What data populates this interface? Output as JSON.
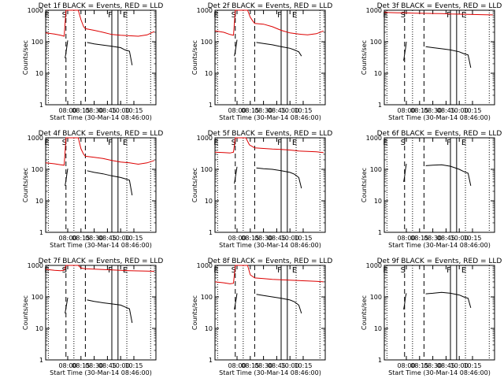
{
  "window": {
    "background": "#ffffff"
  },
  "chart_data": {
    "type": "line",
    "scale": "log",
    "ylim": [
      1,
      1000
    ],
    "yticks": [
      1,
      10,
      100,
      1000
    ],
    "ytick_labels": [
      "1",
      "10",
      "100",
      "1000"
    ],
    "ylabel": "Counts/sec",
    "xlabel": "Start Time (30-Mar-14 08:46:00)",
    "xlim_minutes": [
      -25,
      100
    ],
    "xtick_minutes": [
      0,
      15,
      30,
      45,
      60,
      75
    ],
    "xtick_labels": [
      "08:00",
      "08:15",
      "08:30",
      "08:45",
      "10:00",
      "10:15"
    ],
    "colors": {
      "events": "#000000",
      "lld": "#dd0000"
    },
    "markers": [
      {
        "label": "E",
        "minute": -22,
        "style": "dotted"
      },
      {
        "label": "S",
        "minute": -2,
        "style": "dashed"
      },
      {
        "label": "",
        "minute": 7,
        "style": "dotted"
      },
      {
        "label": "",
        "minute": 20,
        "style": "dashed"
      },
      {
        "label": "F",
        "minute": 50,
        "style": "solid"
      },
      {
        "label": "",
        "minute": 57,
        "style": "solid"
      },
      {
        "label": "E",
        "minute": 67,
        "style": "dotted"
      },
      {
        "label": "",
        "minute": 94,
        "style": "dotted"
      }
    ],
    "panels": [
      {
        "title": "Det 1f BLACK = Events, RED = LLD",
        "events": [
          [
            -3,
            30
          ],
          [
            -2,
            45
          ],
          [
            -1,
            70
          ],
          [
            0,
            110
          ],
          [
            22,
            95
          ],
          [
            30,
            85
          ],
          [
            40,
            78
          ],
          [
            50,
            72
          ],
          [
            60,
            65
          ],
          [
            65,
            55
          ],
          [
            70,
            50
          ],
          [
            73,
            18
          ]
        ],
        "lld": [
          [
            -25,
            190
          ],
          [
            -15,
            175
          ],
          [
            -8,
            160
          ],
          [
            -4,
            150
          ],
          [
            -2,
            1000
          ],
          [
            12,
            1000
          ],
          [
            15,
            500
          ],
          [
            18,
            300
          ],
          [
            20,
            260
          ],
          [
            30,
            230
          ],
          [
            40,
            200
          ],
          [
            50,
            170
          ],
          [
            60,
            160
          ],
          [
            70,
            155
          ],
          [
            80,
            150
          ],
          [
            90,
            165
          ],
          [
            98,
            210
          ]
        ]
      },
      {
        "title": "Det 2f BLACK = Events, RED = LLD",
        "events": [
          [
            -3,
            35
          ],
          [
            -2,
            50
          ],
          [
            -1,
            75
          ],
          [
            0,
            115
          ],
          [
            22,
            95
          ],
          [
            30,
            88
          ],
          [
            40,
            80
          ],
          [
            50,
            70
          ],
          [
            60,
            62
          ],
          [
            65,
            55
          ],
          [
            70,
            48
          ],
          [
            73,
            35
          ]
        ],
        "lld": [
          [
            -25,
            220
          ],
          [
            -15,
            200
          ],
          [
            -8,
            170
          ],
          [
            -4,
            160
          ],
          [
            -2,
            1000
          ],
          [
            12,
            1000
          ],
          [
            15,
            600
          ],
          [
            18,
            450
          ],
          [
            20,
            380
          ],
          [
            30,
            360
          ],
          [
            40,
            300
          ],
          [
            50,
            230
          ],
          [
            60,
            190
          ],
          [
            70,
            175
          ],
          [
            80,
            165
          ],
          [
            90,
            180
          ],
          [
            98,
            220
          ]
        ]
      },
      {
        "title": "Det 3f BLACK = Events, RED = LLD",
        "events": [
          [
            -3,
            25
          ],
          [
            -2,
            40
          ],
          [
            -1,
            60
          ],
          [
            0,
            100
          ],
          [
            22,
            70
          ],
          [
            30,
            65
          ],
          [
            40,
            60
          ],
          [
            50,
            55
          ],
          [
            60,
            48
          ],
          [
            65,
            42
          ],
          [
            70,
            38
          ],
          [
            73,
            15
          ]
        ],
        "lld": [
          [
            -25,
            850
          ],
          [
            -10,
            830
          ],
          [
            0,
            820
          ],
          [
            10,
            810
          ],
          [
            20,
            800
          ],
          [
            30,
            790
          ],
          [
            40,
            780
          ],
          [
            50,
            760
          ],
          [
            60,
            750
          ],
          [
            70,
            740
          ],
          [
            80,
            730
          ],
          [
            90,
            720
          ],
          [
            98,
            710
          ]
        ]
      },
      {
        "title": "Det 4f BLACK = Events, RED = LLD",
        "events": [
          [
            -3,
            30
          ],
          [
            -2,
            45
          ],
          [
            -1,
            70
          ],
          [
            0,
            105
          ],
          [
            22,
            90
          ],
          [
            30,
            80
          ],
          [
            40,
            72
          ],
          [
            50,
            62
          ],
          [
            60,
            55
          ],
          [
            65,
            50
          ],
          [
            70,
            45
          ],
          [
            73,
            15
          ]
        ],
        "lld": [
          [
            -25,
            160
          ],
          [
            -15,
            150
          ],
          [
            -8,
            140
          ],
          [
            -4,
            135
          ],
          [
            -2,
            1000
          ],
          [
            12,
            1000
          ],
          [
            15,
            450
          ],
          [
            18,
            300
          ],
          [
            20,
            260
          ],
          [
            30,
            240
          ],
          [
            40,
            220
          ],
          [
            50,
            190
          ],
          [
            60,
            170
          ],
          [
            70,
            160
          ],
          [
            80,
            145
          ],
          [
            90,
            160
          ],
          [
            98,
            190
          ]
        ]
      },
      {
        "title": "Det 5f BLACK = Events, RED = LLD",
        "events": [
          [
            -3,
            35
          ],
          [
            -2,
            55
          ],
          [
            -1,
            80
          ],
          [
            0,
            120
          ],
          [
            22,
            110
          ],
          [
            30,
            105
          ],
          [
            40,
            100
          ],
          [
            50,
            90
          ],
          [
            60,
            80
          ],
          [
            65,
            70
          ],
          [
            70,
            55
          ],
          [
            73,
            25
          ]
        ],
        "lld": [
          [
            -25,
            350
          ],
          [
            -15,
            340
          ],
          [
            -8,
            330
          ],
          [
            -4,
            350
          ],
          [
            -2,
            1000
          ],
          [
            10,
            1000
          ],
          [
            14,
            600
          ],
          [
            20,
            480
          ],
          [
            30,
            460
          ],
          [
            40,
            440
          ],
          [
            50,
            430
          ],
          [
            60,
            410
          ],
          [
            70,
            380
          ],
          [
            80,
            370
          ],
          [
            90,
            360
          ],
          [
            98,
            340
          ]
        ]
      },
      {
        "title": "Det 6f BLACK = Events, RED = LLD",
        "events": [
          [
            -3,
            40
          ],
          [
            -2,
            60
          ],
          [
            -1,
            100
          ],
          [
            0,
            150
          ],
          [
            22,
            130
          ],
          [
            30,
            135
          ],
          [
            40,
            140
          ],
          [
            50,
            125
          ],
          [
            60,
            100
          ],
          [
            65,
            85
          ],
          [
            70,
            75
          ],
          [
            73,
            30
          ]
        ],
        "lld": []
      },
      {
        "title": "Det 7f BLACK = Events, RED = LLD",
        "events": [
          [
            -3,
            30
          ],
          [
            -2,
            45
          ],
          [
            -1,
            65
          ],
          [
            0,
            95
          ],
          [
            22,
            80
          ],
          [
            30,
            72
          ],
          [
            40,
            65
          ],
          [
            50,
            60
          ],
          [
            60,
            55
          ],
          [
            65,
            48
          ],
          [
            70,
            42
          ],
          [
            73,
            15
          ]
        ],
        "lld": [
          [
            -25,
            750
          ],
          [
            -15,
            700
          ],
          [
            -8,
            680
          ],
          [
            -4,
            700
          ],
          [
            -2,
            1000
          ],
          [
            12,
            1000
          ],
          [
            15,
            820
          ],
          [
            20,
            780
          ],
          [
            30,
            760
          ],
          [
            40,
            740
          ],
          [
            50,
            720
          ],
          [
            60,
            700
          ],
          [
            70,
            680
          ],
          [
            80,
            670
          ],
          [
            90,
            660
          ],
          [
            98,
            650
          ]
        ]
      },
      {
        "title": "Det 8f BLACK = Events, RED = LLD",
        "events": [
          [
            -3,
            40
          ],
          [
            -2,
            60
          ],
          [
            -1,
            85
          ],
          [
            0,
            130
          ],
          [
            22,
            120
          ],
          [
            30,
            110
          ],
          [
            40,
            100
          ],
          [
            50,
            90
          ],
          [
            60,
            80
          ],
          [
            65,
            70
          ],
          [
            70,
            55
          ],
          [
            73,
            30
          ]
        ],
        "lld": [
          [
            -25,
            300
          ],
          [
            -15,
            280
          ],
          [
            -8,
            260
          ],
          [
            -4,
            270
          ],
          [
            -2,
            1000
          ],
          [
            12,
            1000
          ],
          [
            15,
            500
          ],
          [
            20,
            400
          ],
          [
            30,
            380
          ],
          [
            40,
            360
          ],
          [
            50,
            350
          ],
          [
            60,
            340
          ],
          [
            70,
            330
          ],
          [
            80,
            320
          ],
          [
            90,
            310
          ],
          [
            98,
            300
          ]
        ]
      },
      {
        "title": "Det 9f BLACK = Events, RED = LLD",
        "events": [
          [
            -3,
            40
          ],
          [
            -2,
            60
          ],
          [
            -1,
            100
          ],
          [
            0,
            130
          ],
          [
            22,
            125
          ],
          [
            30,
            130
          ],
          [
            40,
            140
          ],
          [
            50,
            130
          ],
          [
            60,
            115
          ],
          [
            65,
            100
          ],
          [
            70,
            90
          ],
          [
            73,
            45
          ]
        ],
        "lld": []
      }
    ]
  }
}
